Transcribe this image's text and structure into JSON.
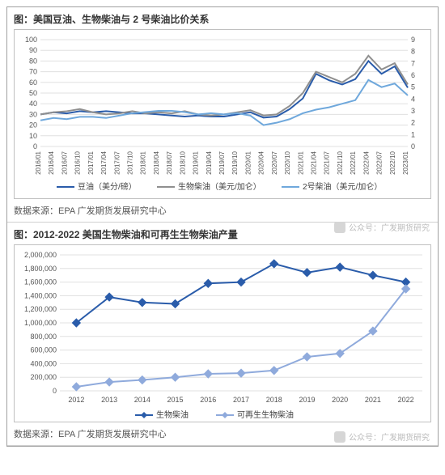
{
  "watermark": "公众号：广发期货研究",
  "chart1": {
    "title": "图：美国豆油、生物柴油与 2 号柴油比价关系",
    "source": "数据来源：EPA  广发期货发展研究中心",
    "type": "line",
    "x_labels": [
      "2016/01",
      "2016/04",
      "2016/07",
      "2016/10",
      "2017/01",
      "2017/04",
      "2017/07",
      "2017/10",
      "2018/01",
      "2018/04",
      "2018/07",
      "2018/10",
      "2019/01",
      "2019/04",
      "2019/07",
      "2019/10",
      "2020/01",
      "2020/04",
      "2020/07",
      "2020/10",
      "2021/01",
      "2021/04",
      "2021/07",
      "2021/10",
      "2022/01",
      "2022/04",
      "2022/07",
      "2022/10",
      "2023/01"
    ],
    "y_left": {
      "min": 0,
      "max": 100,
      "step": 10
    },
    "y_right": {
      "min": 0,
      "max": 9,
      "step": 1
    },
    "grid_color": "#e0e0e0",
    "background_color": "#ffffff",
    "series": [
      {
        "name": "豆油（美分/磅）",
        "color": "#2a5caa",
        "width": 2,
        "axis": "left",
        "values": [
          30,
          32,
          31,
          33,
          32,
          33,
          32,
          31,
          31,
          30,
          29,
          28,
          29,
          28,
          28,
          30,
          32,
          27,
          28,
          35,
          45,
          68,
          62,
          58,
          63,
          80,
          68,
          75,
          55
        ]
      },
      {
        "name": "生物柴油（美元/加仑）",
        "color": "#8f8f8f",
        "width": 2,
        "axis": "left",
        "values": [
          30,
          32,
          33,
          35,
          32,
          30,
          31,
          33,
          31,
          32,
          31,
          33,
          30,
          29,
          30,
          32,
          34,
          29,
          30,
          38,
          50,
          70,
          65,
          60,
          68,
          85,
          72,
          78,
          58
        ]
      },
      {
        "name": "2号柴油（美元/加仑）",
        "color": "#6fa8dc",
        "width": 2,
        "axis": "right",
        "values": [
          2.2,
          2.4,
          2.3,
          2.5,
          2.5,
          2.4,
          2.6,
          2.8,
          2.9,
          3.0,
          3.0,
          2.9,
          2.7,
          2.8,
          2.7,
          2.8,
          2.6,
          1.8,
          2.0,
          2.3,
          2.8,
          3.1,
          3.3,
          3.6,
          3.9,
          5.6,
          5.0,
          5.3,
          4.3
        ]
      }
    ],
    "legend_items": [
      "豆油（美分/磅）",
      "生物柴油（美元/加仑）",
      "2号柴油（美元/加仑）"
    ]
  },
  "chart2": {
    "title": "图：2012-2022 美国生物柴油和可再生生物柴油产量",
    "source": "数据来源：EPA  广发期货发展研究中心",
    "type": "line-markers",
    "x_labels": [
      "2012",
      "2013",
      "2014",
      "2015",
      "2016",
      "2017",
      "2018",
      "2019",
      "2020",
      "2021",
      "2022"
    ],
    "y": {
      "min": 0,
      "max": 2000000,
      "step": 200000
    },
    "grid_color": "#e0e0e0",
    "background_color": "#ffffff",
    "series": [
      {
        "name": "生物柴油",
        "color": "#2a5caa",
        "width": 2,
        "marker": "diamond",
        "marker_size": 5,
        "values": [
          1000000,
          1380000,
          1300000,
          1280000,
          1580000,
          1600000,
          1870000,
          1740000,
          1820000,
          1700000,
          1600000
        ]
      },
      {
        "name": "可再生生物柴油",
        "color": "#8faadc",
        "width": 2,
        "marker": "diamond",
        "marker_size": 5,
        "values": [
          60000,
          130000,
          160000,
          200000,
          250000,
          260000,
          300000,
          500000,
          550000,
          880000,
          1500000
        ]
      }
    ],
    "legend_items": [
      "生物柴油",
      "可再生生物柴油"
    ]
  }
}
